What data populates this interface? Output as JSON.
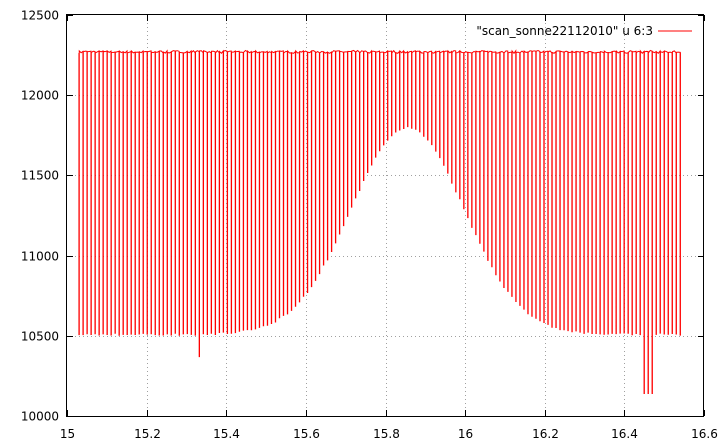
{
  "chart_data": {
    "type": "line",
    "series": [
      {
        "name": "\"scan_sonne22112010\" u 6:3",
        "color": "#ff0000",
        "x_start": 15.03,
        "x_end": 16.54,
        "top_level": 12270,
        "baseline_level": 10510,
        "hump_peak_x": 15.855,
        "hump_peak_y": 11800,
        "hump_width": 0.2,
        "spike_count": 151,
        "outliers": [
          {
            "x": 15.33,
            "y": 10370
          },
          {
            "x": 16.455,
            "y": 10140
          },
          {
            "x": 16.465,
            "y": 10140
          }
        ]
      }
    ],
    "title": "",
    "xlabel": "",
    "ylabel": "",
    "xlim": [
      15,
      16.6
    ],
    "ylim": [
      10000,
      12500
    ],
    "x_ticks": [
      "15",
      "15.2",
      "15.4",
      "15.6",
      "15.8",
      "16",
      "16.2",
      "16.4",
      "16.6"
    ],
    "y_ticks": [
      "10000",
      "10500",
      "11000",
      "11500",
      "12000",
      "12500"
    ],
    "grid": true,
    "legend_position": "top-right"
  }
}
